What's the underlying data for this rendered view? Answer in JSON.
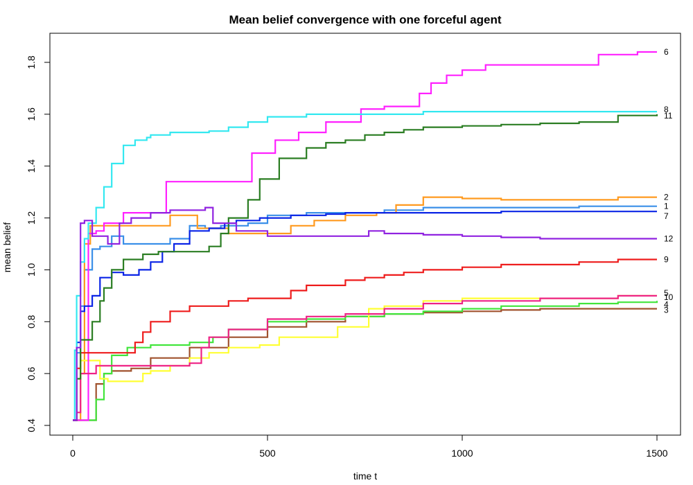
{
  "chart_data": {
    "type": "line",
    "title": "Mean belief convergence with one forceful agent",
    "xlabel": "time t",
    "ylabel": "mean belief",
    "xlim": [
      0,
      1500
    ],
    "ylim": [
      0.4,
      1.85
    ],
    "xticks": [
      0,
      500,
      1000,
      1500
    ],
    "yticks": [
      0.4,
      0.6,
      0.8,
      1.0,
      1.2,
      1.4,
      1.6,
      1.8
    ],
    "ytick_labels": [
      "0.4",
      "0.6",
      "0.8",
      "1.0",
      "1.2",
      "1.4",
      "1.6",
      "1.8"
    ],
    "grid": false,
    "series": [
      {
        "name": "1",
        "color": "#3a8fe8",
        "x": [
          0,
          10,
          20,
          30,
          50,
          70,
          100,
          130,
          180,
          250,
          300,
          340,
          380,
          450,
          500,
          600,
          700,
          800,
          900,
          1000,
          1100,
          1200,
          1300,
          1400,
          1500
        ],
        "y": [
          0.42,
          0.68,
          0.86,
          1.0,
          1.08,
          1.09,
          1.13,
          1.1,
          1.1,
          1.12,
          1.17,
          1.16,
          1.17,
          1.18,
          1.21,
          1.22,
          1.22,
          1.23,
          1.24,
          1.24,
          1.24,
          1.24,
          1.245,
          1.245,
          1.245
        ]
      },
      {
        "name": "2",
        "color": "#ff9a1f",
        "x": [
          0,
          20,
          30,
          45,
          100,
          180,
          250,
          320,
          340,
          400,
          500,
          560,
          620,
          700,
          780,
          830,
          900,
          1000,
          1100,
          1200,
          1300,
          1400,
          1500
        ],
        "y": [
          0.42,
          0.6,
          1.1,
          1.17,
          1.17,
          1.17,
          1.21,
          1.16,
          1.16,
          1.14,
          1.14,
          1.17,
          1.19,
          1.21,
          1.22,
          1.25,
          1.28,
          1.275,
          1.27,
          1.27,
          1.27,
          1.28,
          1.28
        ]
      },
      {
        "name": "3",
        "color": "#a0522d",
        "x": [
          0,
          30,
          50,
          60,
          80,
          100,
          150,
          200,
          300,
          400,
          500,
          600,
          700,
          800,
          900,
          1000,
          1100,
          1200,
          1300,
          1400,
          1500
        ],
        "y": [
          0.42,
          0.42,
          0.42,
          0.56,
          0.6,
          0.61,
          0.62,
          0.66,
          0.7,
          0.74,
          0.78,
          0.8,
          0.82,
          0.83,
          0.835,
          0.84,
          0.845,
          0.85,
          0.85,
          0.85,
          0.85
        ]
      },
      {
        "name": "4",
        "color": "#41e53b",
        "x": [
          0,
          40,
          60,
          80,
          100,
          140,
          200,
          300,
          360,
          400,
          500,
          600,
          700,
          800,
          900,
          1000,
          1100,
          1200,
          1300,
          1400,
          1500
        ],
        "y": [
          0.42,
          0.42,
          0.5,
          0.6,
          0.67,
          0.7,
          0.71,
          0.72,
          0.74,
          0.77,
          0.8,
          0.81,
          0.82,
          0.83,
          0.84,
          0.85,
          0.86,
          0.86,
          0.87,
          0.875,
          0.88
        ]
      },
      {
        "name": "5",
        "color": "#ffff33",
        "x": [
          0,
          10,
          20,
          50,
          70,
          90,
          150,
          180,
          200,
          250,
          300,
          350,
          400,
          480,
          530,
          600,
          680,
          760,
          800,
          860,
          900,
          1000,
          1100,
          1200,
          1300,
          1400,
          1500
        ],
        "y": [
          0.42,
          0.58,
          0.65,
          0.65,
          0.58,
          0.57,
          0.57,
          0.6,
          0.61,
          0.63,
          0.66,
          0.68,
          0.7,
          0.71,
          0.74,
          0.74,
          0.78,
          0.85,
          0.86,
          0.86,
          0.88,
          0.89,
          0.89,
          0.89,
          0.89,
          0.9,
          0.9
        ]
      },
      {
        "name": "6",
        "color": "#ff20ff",
        "x": [
          0,
          20,
          40,
          60,
          80,
          130,
          180,
          240,
          300,
          350,
          430,
          460,
          520,
          580,
          650,
          740,
          800,
          860,
          890,
          920,
          960,
          1000,
          1060,
          1100,
          1200,
          1300,
          1350,
          1450,
          1500
        ],
        "y": [
          0.42,
          0.42,
          1.14,
          1.15,
          1.18,
          1.22,
          1.22,
          1.34,
          1.34,
          1.34,
          1.34,
          1.45,
          1.5,
          1.53,
          1.57,
          1.62,
          1.63,
          1.63,
          1.68,
          1.72,
          1.75,
          1.77,
          1.79,
          1.79,
          1.79,
          1.79,
          1.83,
          1.84,
          1.84
        ]
      },
      {
        "name": "7",
        "color": "#0a24e6",
        "x": [
          0,
          10,
          20,
          30,
          50,
          70,
          100,
          130,
          170,
          200,
          230,
          260,
          300,
          350,
          390,
          420,
          480,
          560,
          650,
          700,
          800,
          900,
          1000,
          1100,
          1200,
          1300,
          1400,
          1500
        ],
        "y": [
          0.42,
          0.72,
          0.84,
          0.86,
          0.9,
          0.97,
          0.99,
          0.98,
          1.0,
          1.03,
          1.07,
          1.1,
          1.15,
          1.16,
          1.18,
          1.19,
          1.2,
          1.21,
          1.215,
          1.22,
          1.22,
          1.22,
          1.22,
          1.225,
          1.225,
          1.225,
          1.225,
          1.225
        ]
      },
      {
        "name": "8",
        "color": "#33e8f0",
        "x": [
          0,
          5,
          10,
          20,
          30,
          40,
          60,
          80,
          100,
          130,
          160,
          190,
          200,
          250,
          300,
          350,
          400,
          450,
          500,
          600,
          700,
          800,
          900,
          1000,
          1100,
          1200,
          1300,
          1400,
          1500
        ],
        "y": [
          0.42,
          0.69,
          0.9,
          1.03,
          1.12,
          1.18,
          1.24,
          1.32,
          1.41,
          1.48,
          1.5,
          1.51,
          1.52,
          1.53,
          1.53,
          1.535,
          1.55,
          1.57,
          1.59,
          1.6,
          1.6,
          1.6,
          1.61,
          1.61,
          1.61,
          1.61,
          1.61,
          1.61,
          1.61
        ]
      },
      {
        "name": "9",
        "color": "#ee1c1c",
        "x": [
          0,
          10,
          20,
          60,
          110,
          160,
          180,
          200,
          250,
          300,
          350,
          400,
          450,
          500,
          560,
          600,
          650,
          700,
          750,
          800,
          850,
          900,
          950,
          1000,
          1100,
          1200,
          1300,
          1400,
          1500
        ],
        "y": [
          0.42,
          0.62,
          0.68,
          0.68,
          0.68,
          0.72,
          0.76,
          0.8,
          0.84,
          0.86,
          0.86,
          0.88,
          0.89,
          0.89,
          0.92,
          0.94,
          0.94,
          0.96,
          0.97,
          0.98,
          0.99,
          1.0,
          1.0,
          1.01,
          1.02,
          1.02,
          1.03,
          1.04,
          1.04
        ]
      },
      {
        "name": "10",
        "color": "#ee2285",
        "x": [
          0,
          10,
          20,
          40,
          60,
          90,
          150,
          200,
          250,
          300,
          330,
          350,
          400,
          500,
          600,
          700,
          800,
          900,
          1000,
          1100,
          1200,
          1300,
          1400,
          1500
        ],
        "y": [
          0.42,
          0.45,
          0.6,
          0.6,
          0.63,
          0.63,
          0.63,
          0.63,
          0.63,
          0.64,
          0.7,
          0.74,
          0.77,
          0.81,
          0.82,
          0.83,
          0.85,
          0.87,
          0.88,
          0.88,
          0.89,
          0.89,
          0.9,
          0.9
        ]
      },
      {
        "name": "11",
        "color": "#2a7d22",
        "x": [
          0,
          10,
          20,
          50,
          70,
          80,
          100,
          130,
          180,
          220,
          260,
          300,
          350,
          380,
          400,
          450,
          480,
          530,
          600,
          650,
          700,
          750,
          800,
          850,
          900,
          1000,
          1100,
          1200,
          1300,
          1400,
          1500
        ],
        "y": [
          0.42,
          0.58,
          0.73,
          0.8,
          0.88,
          0.93,
          1.0,
          1.04,
          1.06,
          1.07,
          1.07,
          1.07,
          1.09,
          1.14,
          1.2,
          1.27,
          1.35,
          1.43,
          1.47,
          1.49,
          1.5,
          1.52,
          1.53,
          1.54,
          1.55,
          1.555,
          1.56,
          1.565,
          1.57,
          1.595,
          1.6
        ]
      },
      {
        "name": "12",
        "color": "#9022e0",
        "x": [
          0,
          10,
          20,
          30,
          50,
          90,
          120,
          150,
          200,
          250,
          300,
          340,
          360,
          420,
          500,
          600,
          700,
          760,
          800,
          900,
          1000,
          1100,
          1200,
          1300,
          1400,
          1500
        ],
        "y": [
          0.42,
          0.7,
          1.18,
          1.19,
          1.13,
          1.1,
          1.18,
          1.2,
          1.22,
          1.23,
          1.23,
          1.24,
          1.18,
          1.15,
          1.13,
          1.13,
          1.13,
          1.15,
          1.14,
          1.135,
          1.13,
          1.125,
          1.12,
          1.12,
          1.12,
          1.12
        ]
      }
    ]
  }
}
